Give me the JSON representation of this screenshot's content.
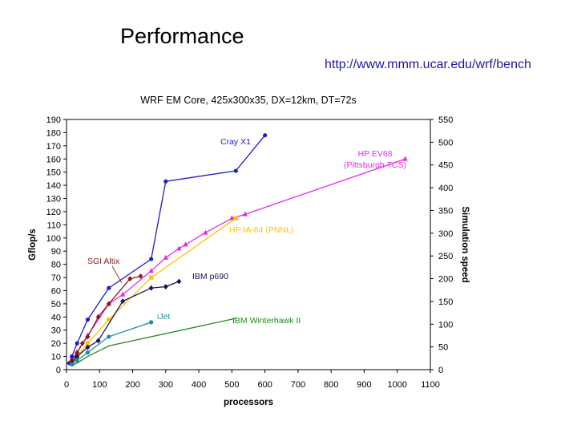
{
  "slide": {
    "title": "Performance",
    "url": "http://www.mmm.ucar.edu/wrf/bench"
  },
  "chart_data": {
    "type": "line",
    "title": "WRF EM Core, 425x300x35, DX=12km, DT=72s",
    "xlabel": "processors",
    "ylabel": "Gflop/s",
    "y2label": "Simulation speed",
    "xlim": [
      0,
      1100
    ],
    "ylim": [
      0,
      190
    ],
    "y2lim": [
      0,
      550
    ],
    "xticks": [
      0,
      100,
      200,
      300,
      400,
      500,
      600,
      700,
      800,
      900,
      1000,
      1100
    ],
    "yticks": [
      0,
      10,
      20,
      30,
      40,
      50,
      60,
      70,
      80,
      90,
      100,
      110,
      120,
      130,
      140,
      150,
      160,
      170,
      180,
      190
    ],
    "y2ticks": [
      0,
      50,
      100,
      150,
      200,
      250,
      300,
      350,
      400,
      450,
      500,
      550
    ],
    "legend": "inline labels next to each series",
    "series": [
      {
        "name": "Cray X1",
        "color": "#1c1ccc",
        "marker": "circle",
        "label_text": [
          "Cray X1"
        ],
        "x": [
          8,
          16,
          32,
          64,
          128,
          256,
          300,
          512,
          600
        ],
        "y": [
          5,
          10,
          20,
          38,
          62,
          84,
          143,
          151,
          178
        ]
      },
      {
        "name": "HP EV68 (Pittsburgh TCS)",
        "color": "#e628e6",
        "marker": "triangle",
        "label_text": [
          "HP  EV68",
          "(Pittsburgh TCS)"
        ],
        "x": [
          16,
          32,
          64,
          128,
          170,
          256,
          300,
          340,
          360,
          420,
          500,
          540,
          1024
        ],
        "y": [
          6,
          13,
          26,
          50,
          57,
          75,
          85,
          92,
          95,
          104,
          115,
          118,
          160
        ]
      },
      {
        "name": "HP IA-64 (PNNL)",
        "color": "#ffc000",
        "marker": "square",
        "label_text": [
          "HP IA-64 (PNNL)"
        ],
        "x": [
          16,
          32,
          64,
          128,
          256,
          512
        ],
        "y": [
          5,
          10,
          20,
          38,
          70,
          115
        ]
      },
      {
        "name": "SGI Altix",
        "color": "#8b1a1a",
        "marker": "diamond",
        "label_text": [
          "SGI Altix"
        ],
        "x": [
          16,
          32,
          48,
          64,
          96,
          128,
          192,
          224
        ],
        "y": [
          7,
          13,
          20,
          25,
          40,
          50,
          69,
          71
        ]
      },
      {
        "name": "IBM p690",
        "color": "#15155e",
        "marker": "diamond",
        "label_text": [
          "IBM p690"
        ],
        "x": [
          16,
          32,
          64,
          96,
          170,
          256,
          300,
          340
        ],
        "y": [
          5,
          10,
          17,
          22,
          52,
          62,
          63,
          67
        ]
      },
      {
        "name": "iJet",
        "color": "#1e8c9e",
        "marker": "circle",
        "label_text": [
          "iJet"
        ],
        "x": [
          16,
          32,
          64,
          128,
          256
        ],
        "y": [
          4,
          7,
          13,
          25,
          36
        ]
      },
      {
        "name": "IBM Winterhawk II",
        "color": "#1e8c1e",
        "marker": "none",
        "label_text": [
          "IBM Winterhawk II"
        ],
        "x": [
          16,
          32,
          64,
          128,
          512
        ],
        "y": [
          3,
          5,
          10,
          18,
          39
        ]
      }
    ]
  }
}
